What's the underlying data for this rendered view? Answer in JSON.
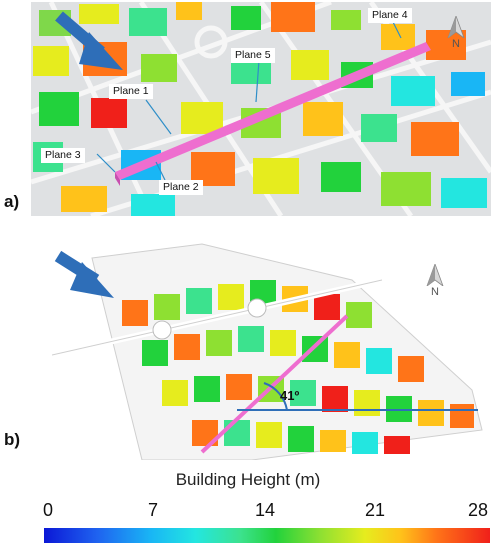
{
  "panel_a": {
    "tag": "a)",
    "planes": [
      "Plane 1",
      "Plane 2",
      "Plane 3",
      "Plane 4",
      "Plane 5"
    ],
    "north_label": "N",
    "accent_color": "#ee6ecf",
    "arrow_color": "#2e6eb8"
  },
  "panel_b": {
    "tag": "b)",
    "angle_label": "41º",
    "north_label": "N"
  },
  "legend": {
    "title": "Building Height (m)",
    "ticks": [
      "0",
      "7",
      "14",
      "21",
      "28"
    ],
    "min": 0,
    "max": 28
  }
}
